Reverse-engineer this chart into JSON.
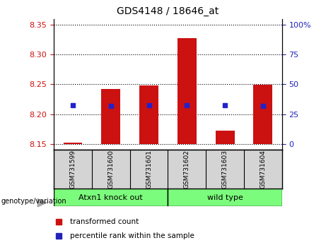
{
  "title": "GDS4148 / 18646_at",
  "samples": [
    "GSM731599",
    "GSM731600",
    "GSM731601",
    "GSM731602",
    "GSM731603",
    "GSM731604"
  ],
  "bar_bottoms": [
    8.15,
    8.15,
    8.15,
    8.15,
    8.15,
    8.15
  ],
  "bar_tops": [
    8.152,
    8.242,
    8.248,
    8.327,
    8.172,
    8.249
  ],
  "percentile_values": [
    8.215,
    8.214,
    8.215,
    8.215,
    8.215,
    8.214
  ],
  "ylim_left": [
    8.14,
    8.36
  ],
  "yticks_left": [
    8.15,
    8.2,
    8.25,
    8.3,
    8.35
  ],
  "yticks_right": [
    0,
    25,
    50,
    75,
    100
  ],
  "yticks_right_vals": [
    8.15,
    8.2,
    8.25,
    8.3,
    8.35
  ],
  "bar_color": "#cc1111",
  "percentile_color": "#2222cc",
  "left_tick_color": "#cc1111",
  "right_tick_color": "#2222bb",
  "group1": {
    "label": "Atxn1 knock out",
    "color": "#7cfc7c"
  },
  "group2": {
    "label": "wild type",
    "color": "#7cfc7c"
  },
  "genotype_label": "genotype/variation",
  "legend_items": [
    {
      "color": "#cc1111",
      "label": "transformed count"
    },
    {
      "color": "#2222bb",
      "label": "percentile rank within the sample"
    }
  ],
  "bar_width": 0.5,
  "sample_bg_color": "#d4d4d4",
  "plot_bg": "#ffffff",
  "fig_bg": "#ffffff"
}
